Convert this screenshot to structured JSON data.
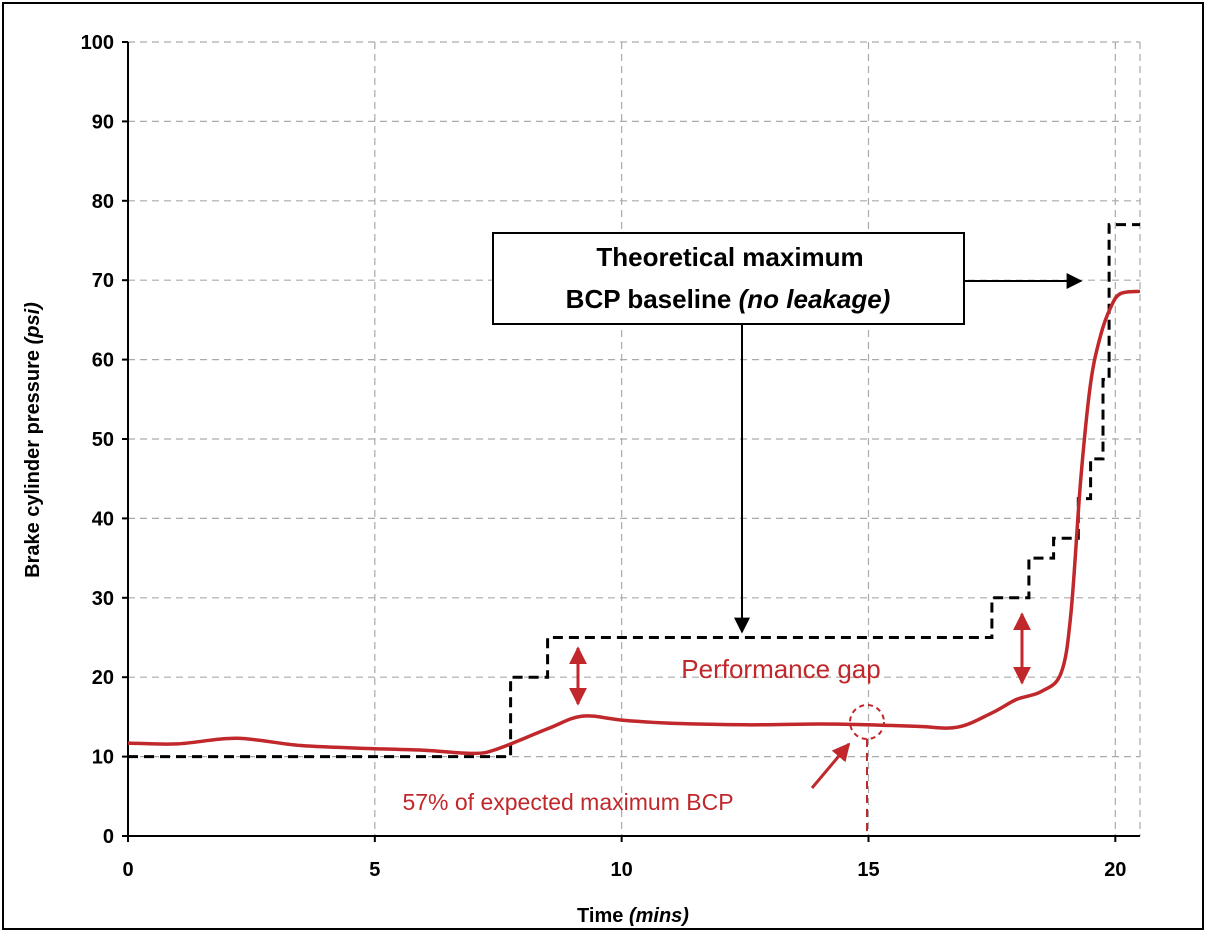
{
  "chart_data": {
    "type": "line",
    "xlabel": "Time",
    "xlabel_unit": "(mins)",
    "ylabel": "Brake cylinder pressure",
    "ylabel_unit": "(psi)",
    "xlim": [
      0,
      20.5
    ],
    "ylim": [
      0,
      100
    ],
    "x_ticks": [
      0,
      5,
      10,
      15,
      20
    ],
    "y_ticks": [
      0,
      10,
      20,
      30,
      40,
      50,
      60,
      70,
      80,
      90,
      100
    ],
    "grid": true,
    "series": [
      {
        "style": "dashed-step",
        "color": "#000000",
        "points": [
          [
            0,
            10
          ],
          [
            7.75,
            10
          ],
          [
            7.75,
            20
          ],
          [
            8.5,
            20
          ],
          [
            8.5,
            25
          ],
          [
            17.5,
            25
          ],
          [
            17.5,
            30
          ],
          [
            18.25,
            30
          ],
          [
            18.25,
            35
          ],
          [
            18.75,
            35
          ],
          [
            18.75,
            37.5
          ],
          [
            19.25,
            37.5
          ],
          [
            19.25,
            42.5
          ],
          [
            19.5,
            42.5
          ],
          [
            19.5,
            47.5
          ],
          [
            19.75,
            47.5
          ],
          [
            19.75,
            57.5
          ],
          [
            19.875,
            57.5
          ],
          [
            19.875,
            77
          ],
          [
            20.5,
            77
          ]
        ]
      },
      {
        "style": "solid",
        "color": "#c0282b",
        "points": [
          [
            0,
            11.7
          ],
          [
            1,
            11.6
          ],
          [
            2.2,
            12.3
          ],
          [
            3.5,
            11.4
          ],
          [
            5,
            11
          ],
          [
            6,
            10.8
          ],
          [
            7,
            10.4
          ],
          [
            7.5,
            11
          ],
          [
            8.5,
            13.5
          ],
          [
            9.2,
            15.1
          ],
          [
            10,
            14.6
          ],
          [
            11,
            14.2
          ],
          [
            12.5,
            14
          ],
          [
            14,
            14.1
          ],
          [
            15,
            14
          ],
          [
            16,
            13.8
          ],
          [
            16.8,
            13.7
          ],
          [
            17.5,
            15.5
          ],
          [
            18,
            17.2
          ],
          [
            18.5,
            18.2
          ],
          [
            18.9,
            20.5
          ],
          [
            19.1,
            28
          ],
          [
            19.3,
            45
          ],
          [
            19.5,
            57
          ],
          [
            19.7,
            63
          ],
          [
            19.9,
            66.5
          ],
          [
            20.1,
            68.3
          ],
          [
            20.5,
            68.6
          ]
        ]
      }
    ]
  },
  "annotations": {
    "box_line1": "Theoretical maximum",
    "box_line2_prefix": "BCP baseline ",
    "box_line2_italic": "(no leakage)",
    "performance_gap": "Performance gap",
    "expected_max": "57% of expected maximum BCP"
  }
}
